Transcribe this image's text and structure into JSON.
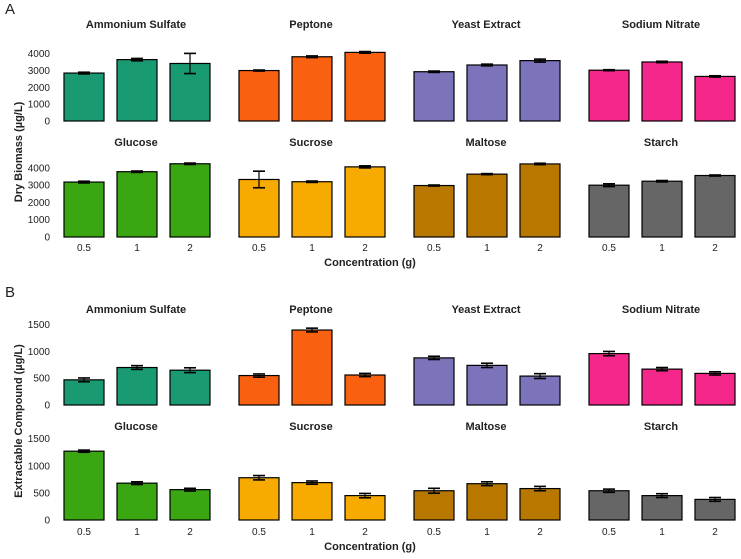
{
  "chart_data": [
    {
      "type": "bar",
      "panel": "A",
      "ylabel": "Dry Biomass (µg/L)",
      "xlabel": "Concentration (g)",
      "categories": [
        "0.5",
        "1",
        "2"
      ],
      "ylim": [
        0,
        4400
      ],
      "yticks": [
        0,
        1000,
        2000,
        3000,
        4000
      ],
      "rows": [
        [
          {
            "title": "Ammonium Sulfate",
            "color": "#1a9a72",
            "values": [
              2850,
              3650,
              3420
            ],
            "errors": [
              50,
              70,
              600
            ]
          },
          {
            "title": "Peptone",
            "color": "#f96010",
            "values": [
              3000,
              3820,
              4080
            ],
            "errors": [
              30,
              50,
              50
            ]
          },
          {
            "title": "Yeast Extract",
            "color": "#7b74bb",
            "values": [
              2930,
              3330,
              3590
            ],
            "errors": [
              40,
              50,
              90
            ]
          },
          {
            "title": "Sodium Nitrate",
            "color": "#f5278b",
            "values": [
              3020,
              3510,
              2650
            ],
            "errors": [
              30,
              40,
              40
            ]
          }
        ],
        [
          {
            "title": "Glucose",
            "color": "#3aa612",
            "values": [
              3180,
              3780,
              4240
            ],
            "errors": [
              50,
              40,
              40
            ]
          },
          {
            "title": "Sucrose",
            "color": "#f7ab00",
            "values": [
              3330,
              3200,
              4060
            ],
            "errors": [
              480,
              40,
              60
            ]
          },
          {
            "title": "Maltose",
            "color": "#b87800",
            "values": [
              2980,
              3640,
              4230
            ],
            "errors": [
              30,
              30,
              40
            ]
          },
          {
            "title": "Starch",
            "color": "#666666",
            "values": [
              3000,
              3230,
              3560
            ],
            "errors": [
              80,
              40,
              30
            ]
          }
        ]
      ]
    },
    {
      "type": "bar",
      "panel": "B",
      "ylabel": "Extractable Compound (µg/L)",
      "xlabel": "Concentration (g)",
      "categories": [
        "0.5",
        "1",
        "2"
      ],
      "ylim": [
        0,
        1550
      ],
      "yticks": [
        0,
        500,
        1000,
        1500
      ],
      "rows": [
        [
          {
            "title": "Ammonium Sulfate",
            "color": "#1a9a72",
            "values": [
              470,
              700,
              650
            ],
            "errors": [
              35,
              35,
              45
            ]
          },
          {
            "title": "Peptone",
            "color": "#f96010",
            "values": [
              550,
              1400,
              560
            ],
            "errors": [
              30,
              35,
              30
            ]
          },
          {
            "title": "Yeast Extract",
            "color": "#7b74bb",
            "values": [
              880,
              740,
              540
            ],
            "errors": [
              30,
              40,
              45
            ]
          },
          {
            "title": "Sodium Nitrate",
            "color": "#f5278b",
            "values": [
              960,
              670,
              590
            ],
            "errors": [
              40,
              30,
              30
            ]
          }
        ],
        [
          {
            "title": "Glucose",
            "color": "#3aa612",
            "values": [
              1270,
              680,
              560
            ],
            "errors": [
              20,
              25,
              25
            ]
          },
          {
            "title": "Sucrose",
            "color": "#f7ab00",
            "values": [
              780,
              690,
              450
            ],
            "errors": [
              40,
              30,
              40
            ]
          },
          {
            "title": "Maltose",
            "color": "#b87800",
            "values": [
              540,
              670,
              580
            ],
            "errors": [
              45,
              35,
              40
            ]
          },
          {
            "title": "Starch",
            "color": "#666666",
            "values": [
              540,
              450,
              380
            ],
            "errors": [
              30,
              35,
              35
            ]
          }
        ]
      ]
    }
  ]
}
